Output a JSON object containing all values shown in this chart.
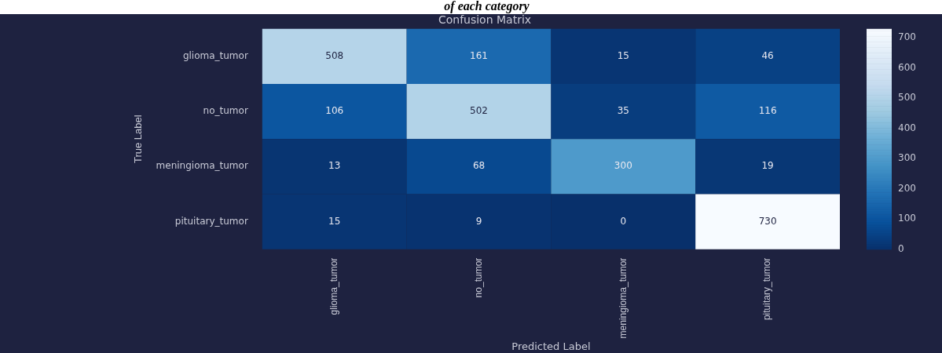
{
  "chart_data": {
    "type": "heatmap",
    "title": "Confusion Matrix",
    "xlabel": "Predicted Label",
    "ylabel": "True Label",
    "annotations": [
      "of each category"
    ],
    "categories": [
      "glioma_tumor",
      "no_tumor",
      "meningioma_tumor",
      "pituitary_tumor"
    ],
    "y_categories": [
      "glioma_tumor",
      "no_tumor",
      "meningioma_tumor",
      "pituitary_tumor"
    ],
    "cells": [
      [
        508,
        161,
        15,
        46
      ],
      [
        106,
        502,
        35,
        116
      ],
      [
        13,
        68,
        300,
        19
      ],
      [
        15,
        9,
        0,
        730
      ]
    ],
    "clim": [
      0,
      730
    ],
    "cticks": [
      0,
      100,
      200,
      300,
      400,
      500,
      600,
      700
    ],
    "data_labels": true
  }
}
